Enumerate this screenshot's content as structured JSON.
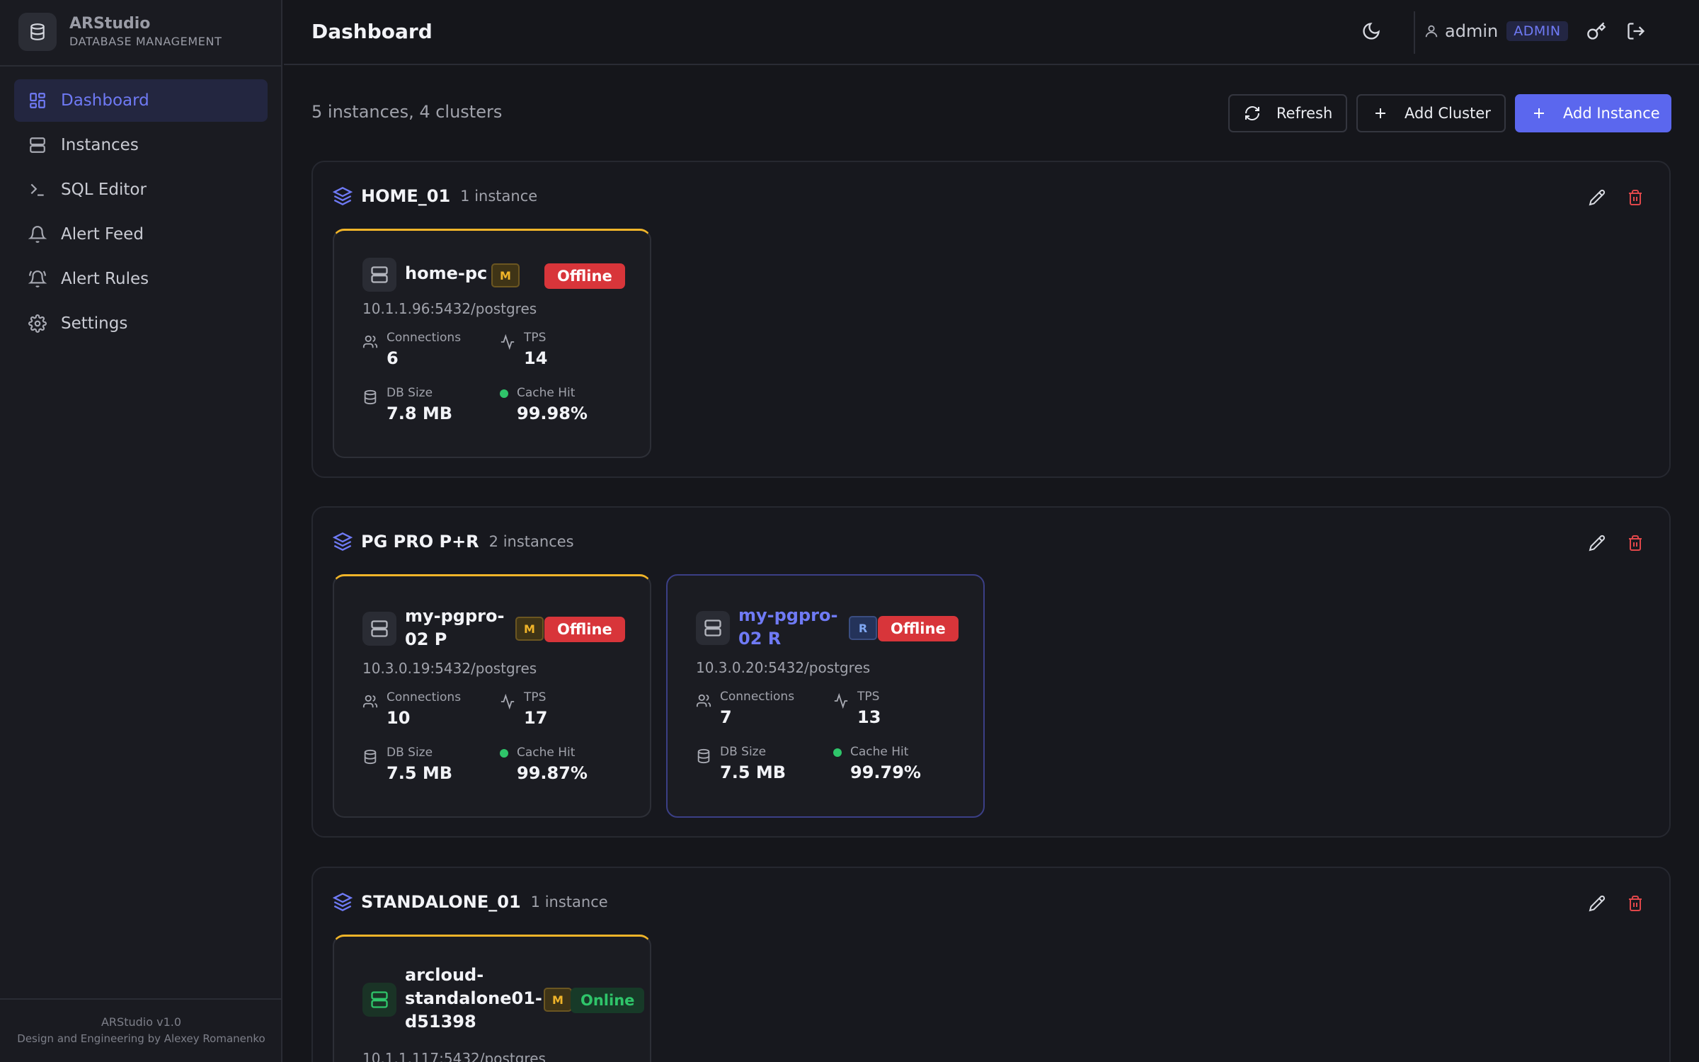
{
  "brand": {
    "name": "ARStudio",
    "subtitle": "DATABASE MANAGEMENT"
  },
  "sidebar": {
    "items": [
      {
        "label": "Dashboard",
        "icon": "dashboard-icon",
        "active": true
      },
      {
        "label": "Instances",
        "icon": "server-icon"
      },
      {
        "label": "SQL Editor",
        "icon": "terminal-icon"
      },
      {
        "label": "Alert Feed",
        "icon": "bell-icon"
      },
      {
        "label": "Alert Rules",
        "icon": "bell-ring-icon"
      },
      {
        "label": "Settings",
        "icon": "gear-icon"
      }
    ],
    "footer": {
      "version": "ARStudio v1.0",
      "credit": "Design and Engineering by Alexey Romanenko"
    }
  },
  "header": {
    "title": "Dashboard",
    "user": "admin",
    "role": "ADMIN"
  },
  "summary": "5 instances, 4 clusters",
  "actions": {
    "refresh": "Refresh",
    "add_cluster": "Add Cluster",
    "add_instance": "Add Instance"
  },
  "labels": {
    "connections": "Connections",
    "tps": "TPS",
    "db_size": "DB Size",
    "cache_hit": "Cache Hit"
  },
  "colors": {
    "accent": "#5b67ee",
    "master": "#f0b429",
    "offline": "#d8353a",
    "online": "#2fc56a"
  },
  "clusters": [
    {
      "name": "HOME_01",
      "count": "1 instance",
      "instances": [
        {
          "name": "home-pc",
          "role": "M",
          "status": "Offline",
          "address": "10.1.1.96:5432/postgres",
          "connections": "6",
          "tps": "14",
          "db_size": "7.8 MB",
          "cache_hit": "99.98%"
        }
      ]
    },
    {
      "name": "PG PRO P+R",
      "count": "2 instances",
      "instances": [
        {
          "name_line1": "my-pgpro-",
          "name_line2": "02 P",
          "role": "M",
          "status": "Offline",
          "address": "10.3.0.19:5432/postgres",
          "connections": "10",
          "tps": "17",
          "db_size": "7.5 MB",
          "cache_hit": "99.87%"
        },
        {
          "name_line1": "my-pgpro-",
          "name_line2": "02 R",
          "role": "R",
          "status": "Offline",
          "address": "10.3.0.20:5432/postgres",
          "connections": "7",
          "tps": "13",
          "db_size": "7.5 MB",
          "cache_hit": "99.79%"
        }
      ]
    },
    {
      "name": "STANDALONE_01",
      "count": "1 instance",
      "instances": [
        {
          "name_line1": "arcloud-",
          "name_line2": "standalone01-",
          "name_line3": "d51398",
          "role": "M",
          "status": "Online",
          "address": "10.1.1.117:5432/postgres"
        }
      ]
    }
  ]
}
